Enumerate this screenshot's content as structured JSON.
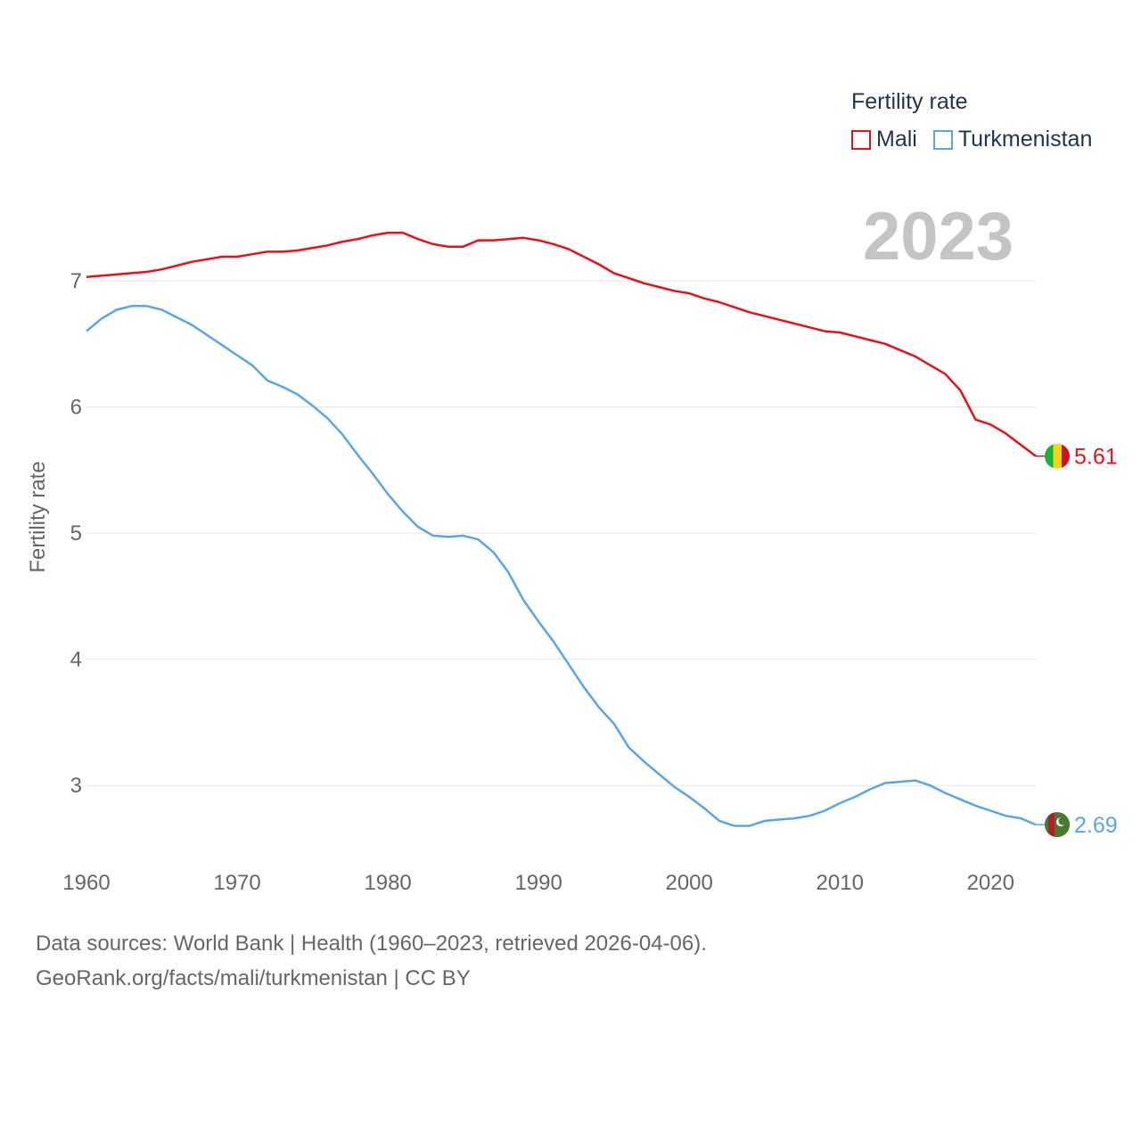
{
  "legend": {
    "title": "Fertility rate",
    "items": [
      {
        "label": "Mali",
        "color": "#e8111a"
      },
      {
        "label": "Turkmenistan",
        "color": "#5aa5e8"
      }
    ]
  },
  "current_year": "2023",
  "footer": {
    "line1": "Data sources: World Bank | Health (1960–2023, retrieved 2026-04-06).",
    "line2": "GeoRank.org/facts/mali/turkmenistan | CC BY"
  },
  "chart_data": {
    "type": "line",
    "title": "Fertility rate",
    "xlabel": "",
    "ylabel": "Fertility rate",
    "xlim": [
      1960,
      2023
    ],
    "ylim": [
      2.5,
      7.6
    ],
    "x_ticks": [
      1960,
      1970,
      1980,
      1990,
      2000,
      2010,
      2020
    ],
    "y_ticks": [
      3,
      4,
      5,
      6,
      7
    ],
    "grid": true,
    "x": [
      1960,
      1961,
      1962,
      1963,
      1964,
      1965,
      1966,
      1967,
      1968,
      1969,
      1970,
      1971,
      1972,
      1973,
      1974,
      1975,
      1976,
      1977,
      1978,
      1979,
      1980,
      1981,
      1982,
      1983,
      1984,
      1985,
      1986,
      1987,
      1988,
      1989,
      1990,
      1991,
      1992,
      1993,
      1994,
      1995,
      1996,
      1997,
      1998,
      1999,
      2000,
      2001,
      2002,
      2003,
      2004,
      2005,
      2006,
      2007,
      2008,
      2009,
      2010,
      2011,
      2012,
      2013,
      2014,
      2015,
      2016,
      2017,
      2018,
      2019,
      2020,
      2021,
      2022,
      2023
    ],
    "series": [
      {
        "name": "Mali",
        "color": "#e8111a",
        "end_label": "5.61",
        "values": [
          7.03,
          7.04,
          7.05,
          7.06,
          7.07,
          7.09,
          7.12,
          7.15,
          7.17,
          7.19,
          7.19,
          7.21,
          7.23,
          7.23,
          7.24,
          7.26,
          7.28,
          7.31,
          7.33,
          7.36,
          7.38,
          7.38,
          7.33,
          7.29,
          7.27,
          7.27,
          7.32,
          7.32,
          7.33,
          7.34,
          7.32,
          7.29,
          7.25,
          7.19,
          7.13,
          7.06,
          7.02,
          6.98,
          6.95,
          6.92,
          6.9,
          6.86,
          6.83,
          6.79,
          6.75,
          6.72,
          6.69,
          6.66,
          6.63,
          6.6,
          6.59,
          6.56,
          6.53,
          6.5,
          6.45,
          6.4,
          6.33,
          6.26,
          6.13,
          5.9,
          5.86,
          5.79,
          5.7,
          5.61
        ]
      },
      {
        "name": "Turkmenistan",
        "color": "#5aa5e8",
        "end_label": "2.69",
        "values": [
          6.6,
          6.7,
          6.77,
          6.8,
          6.8,
          6.77,
          6.71,
          6.65,
          6.57,
          6.49,
          6.41,
          6.33,
          6.21,
          6.16,
          6.1,
          6.01,
          5.91,
          5.78,
          5.62,
          5.47,
          5.31,
          5.17,
          5.05,
          4.98,
          4.97,
          4.98,
          4.95,
          4.85,
          4.69,
          4.47,
          4.3,
          4.14,
          3.96,
          3.78,
          3.62,
          3.49,
          3.3,
          3.19,
          3.09,
          2.99,
          2.91,
          2.82,
          2.72,
          2.68,
          2.68,
          2.72,
          2.73,
          2.74,
          2.76,
          2.8,
          2.86,
          2.91,
          2.97,
          3.02,
          3.03,
          3.04,
          3.0,
          2.94,
          2.89,
          2.84,
          2.8,
          2.76,
          2.74,
          2.69
        ]
      }
    ]
  }
}
